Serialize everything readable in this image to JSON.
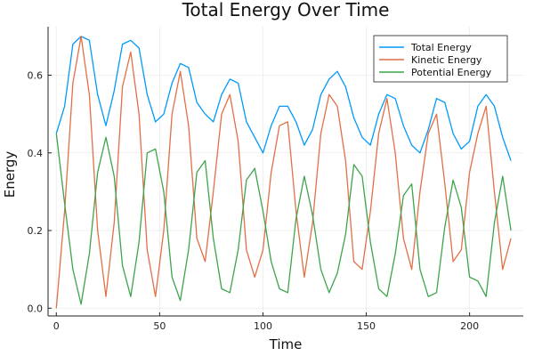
{
  "chart_data": {
    "type": "line",
    "title": "Total Energy Over Time",
    "xlabel": "Time",
    "ylabel": "Energy",
    "xlim": [
      -4,
      226
    ],
    "ylim": [
      -0.02,
      0.725
    ],
    "xticks": [
      0,
      50,
      100,
      150,
      200
    ],
    "yticks": [
      0.0,
      0.2,
      0.4,
      0.6
    ],
    "xtick_labels": [
      "0",
      "50",
      "100",
      "150",
      "200"
    ],
    "ytick_labels": [
      "0.0",
      "0.2",
      "0.4",
      "0.6"
    ],
    "grid": true,
    "legend_position": "top-right",
    "series": [
      {
        "name": "Total Energy",
        "color": "#009af9",
        "x": [
          0,
          4,
          8,
          12,
          16,
          20,
          24,
          28,
          32,
          36,
          40,
          44,
          48,
          52,
          56,
          60,
          64,
          68,
          72,
          76,
          80,
          84,
          88,
          92,
          96,
          100,
          104,
          108,
          112,
          116,
          120,
          124,
          128,
          132,
          136,
          140,
          144,
          148,
          152,
          156,
          160,
          164,
          168,
          172,
          176,
          180,
          184,
          188,
          192,
          196,
          200,
          204,
          208,
          212,
          216,
          220
        ],
        "y": [
          0.45,
          0.52,
          0.68,
          0.7,
          0.69,
          0.55,
          0.47,
          0.56,
          0.68,
          0.69,
          0.67,
          0.55,
          0.48,
          0.5,
          0.58,
          0.63,
          0.62,
          0.53,
          0.5,
          0.48,
          0.55,
          0.59,
          0.58,
          0.48,
          0.44,
          0.4,
          0.47,
          0.52,
          0.52,
          0.48,
          0.42,
          0.46,
          0.55,
          0.59,
          0.61,
          0.57,
          0.49,
          0.44,
          0.42,
          0.5,
          0.55,
          0.54,
          0.47,
          0.42,
          0.4,
          0.46,
          0.54,
          0.53,
          0.45,
          0.41,
          0.43,
          0.52,
          0.55,
          0.52,
          0.44,
          0.38
        ]
      },
      {
        "name": "Kinetic Energy",
        "color": "#e26f46",
        "x": [
          0,
          4,
          8,
          12,
          16,
          20,
          24,
          28,
          32,
          36,
          40,
          44,
          48,
          52,
          56,
          60,
          64,
          68,
          72,
          76,
          80,
          84,
          88,
          92,
          96,
          100,
          104,
          108,
          112,
          116,
          120,
          124,
          128,
          132,
          136,
          140,
          144,
          148,
          152,
          156,
          160,
          164,
          168,
          172,
          176,
          180,
          184,
          188,
          192,
          196,
          200,
          204,
          208,
          212,
          216,
          220
        ],
        "y": [
          0.0,
          0.25,
          0.58,
          0.7,
          0.55,
          0.2,
          0.03,
          0.22,
          0.57,
          0.66,
          0.5,
          0.15,
          0.03,
          0.2,
          0.5,
          0.61,
          0.47,
          0.18,
          0.12,
          0.3,
          0.5,
          0.55,
          0.43,
          0.15,
          0.08,
          0.15,
          0.35,
          0.47,
          0.48,
          0.25,
          0.08,
          0.22,
          0.45,
          0.55,
          0.52,
          0.38,
          0.12,
          0.1,
          0.25,
          0.45,
          0.54,
          0.4,
          0.18,
          0.1,
          0.3,
          0.45,
          0.5,
          0.32,
          0.12,
          0.15,
          0.35,
          0.45,
          0.52,
          0.3,
          0.1,
          0.18
        ]
      },
      {
        "name": "Potential Energy",
        "color": "#3da44d",
        "x": [
          0,
          4,
          8,
          12,
          16,
          20,
          24,
          28,
          32,
          36,
          40,
          44,
          48,
          52,
          56,
          60,
          64,
          68,
          72,
          76,
          80,
          84,
          88,
          92,
          96,
          100,
          104,
          108,
          112,
          116,
          120,
          124,
          128,
          132,
          136,
          140,
          144,
          148,
          152,
          156,
          160,
          164,
          168,
          172,
          176,
          180,
          184,
          188,
          192,
          196,
          200,
          204,
          208,
          212,
          216,
          220
        ],
        "y": [
          0.45,
          0.27,
          0.1,
          0.01,
          0.14,
          0.35,
          0.44,
          0.34,
          0.11,
          0.03,
          0.17,
          0.4,
          0.41,
          0.3,
          0.08,
          0.02,
          0.15,
          0.35,
          0.38,
          0.18,
          0.05,
          0.04,
          0.15,
          0.33,
          0.36,
          0.25,
          0.12,
          0.05,
          0.04,
          0.23,
          0.34,
          0.24,
          0.1,
          0.04,
          0.09,
          0.19,
          0.37,
          0.34,
          0.17,
          0.05,
          0.03,
          0.14,
          0.29,
          0.32,
          0.1,
          0.03,
          0.04,
          0.21,
          0.33,
          0.26,
          0.08,
          0.07,
          0.03,
          0.22,
          0.34,
          0.2
        ]
      }
    ]
  }
}
